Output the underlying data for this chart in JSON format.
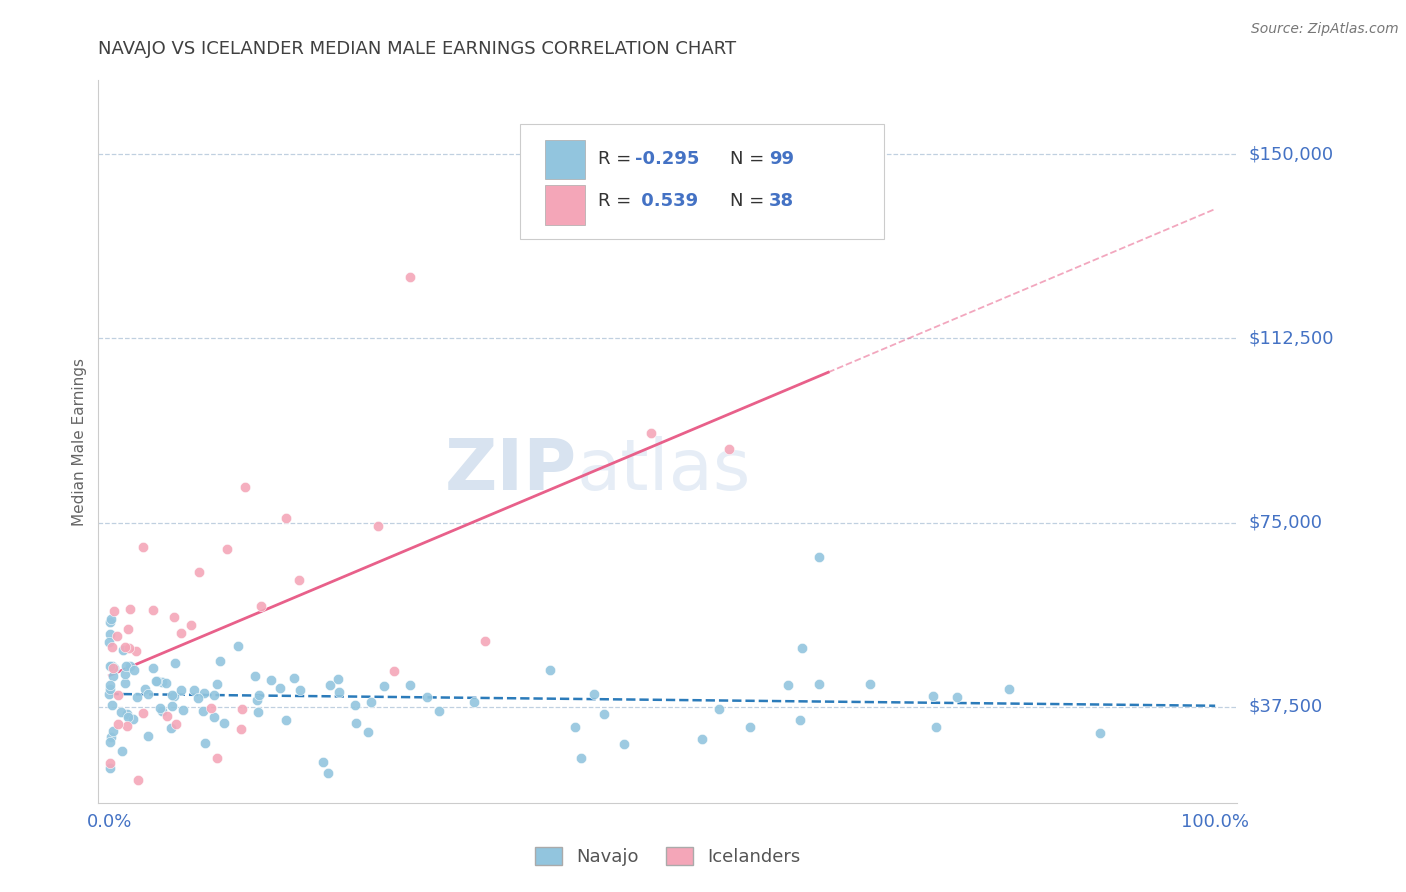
{
  "title": "NAVAJO VS ICELANDER MEDIAN MALE EARNINGS CORRELATION CHART",
  "source": "Source: ZipAtlas.com",
  "ylabel": "Median Male Earnings",
  "xlim": [
    -0.01,
    1.02
  ],
  "ylim": [
    18000,
    165000
  ],
  "yticks": [
    37500,
    75000,
    112500,
    150000
  ],
  "ytick_labels": [
    "$37,500",
    "$75,000",
    "$112,500",
    "$150,000"
  ],
  "xtick_labels": [
    "0.0%",
    "100.0%"
  ],
  "navajo_R": -0.295,
  "navajo_N": 99,
  "icelander_R": 0.539,
  "icelander_N": 38,
  "navajo_color": "#92c5de",
  "icelander_color": "#f4a6b8",
  "navajo_line_color": "#2b7bba",
  "icelander_line_color": "#e8608a",
  "title_color": "#404040",
  "axis_label_color": "#666666",
  "tick_label_color": "#4472c4",
  "grid_color": "#c0d0e0",
  "background_color": "#ffffff",
  "watermark_zip": "ZIP",
  "watermark_atlas": "atlas",
  "legend_navajo_label": "R = -0.295   N = 99",
  "legend_icelander_label": "R =  0.539   N = 38"
}
